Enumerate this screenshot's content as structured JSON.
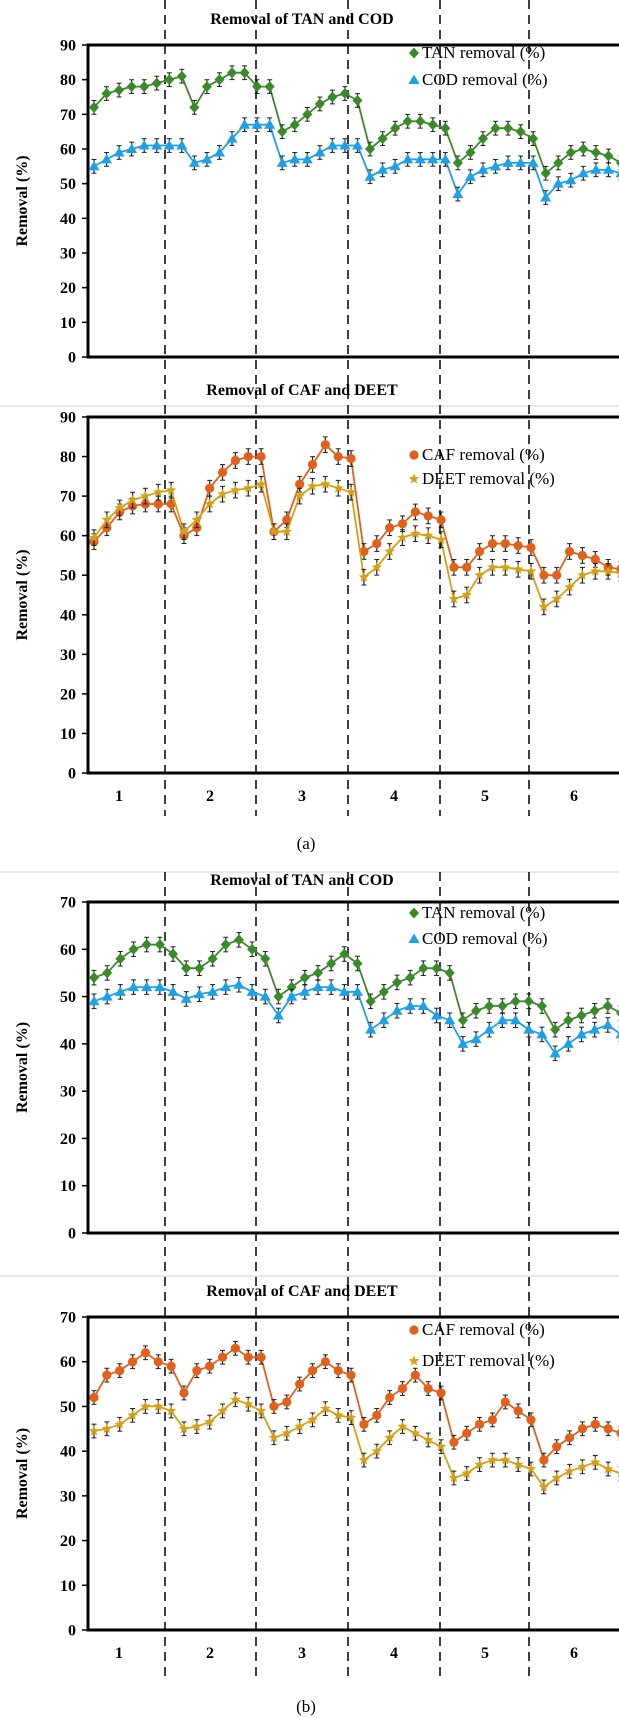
{
  "figure": {
    "caption_a": "(a)",
    "caption_b": "(b)"
  },
  "chart_data": [
    {
      "type": "line",
      "title": "Removal of TAN and COD",
      "xlabel": "",
      "ylabel": "Removal (%)",
      "ylim": [
        0,
        90
      ],
      "yticks": [
        0,
        10,
        20,
        30,
        40,
        50,
        60,
        70,
        80,
        90
      ],
      "grid": false,
      "legend": "top-right",
      "phase_labels": [],
      "series": [
        {
          "name": "TAN removal (%)",
          "marker": "diamond",
          "color": "#3a8a2a",
          "values": [
            72,
            76,
            77,
            78,
            78,
            79,
            80,
            81,
            72,
            78,
            80,
            82,
            82,
            78,
            78,
            65,
            67,
            70,
            73,
            75,
            76,
            74,
            60,
            63,
            66,
            68,
            68,
            67,
            66,
            56,
            59,
            63,
            66,
            66,
            65,
            63,
            53,
            56,
            59,
            60,
            59,
            58,
            56
          ]
        },
        {
          "name": "COD removal (%)",
          "marker": "triangle",
          "color": "#1ea0e6",
          "values": [
            55,
            57,
            59,
            60,
            61,
            61,
            61,
            61,
            56,
            57,
            59,
            63,
            67,
            67,
            67,
            56,
            57,
            57,
            59,
            61,
            61,
            61,
            52,
            54,
            55,
            57,
            57,
            57,
            57,
            47,
            52,
            54,
            55,
            56,
            56,
            56,
            46,
            50,
            51,
            53,
            54,
            54,
            53
          ]
        }
      ]
    },
    {
      "type": "line",
      "title": "Removal of CAF and DEET",
      "xlabel": "",
      "ylabel": "Removal (%)",
      "ylim": [
        0,
        90
      ],
      "yticks": [
        0,
        10,
        20,
        30,
        40,
        50,
        60,
        70,
        80,
        90
      ],
      "grid": false,
      "legend": "top-right",
      "phase_labels": [
        "1",
        "2",
        "3",
        "4",
        "5",
        "6"
      ],
      "series": [
        {
          "name": "CAF removal (%)",
          "marker": "circle",
          "color": "#e0601c",
          "values": [
            58.5,
            62,
            66,
            67.5,
            68,
            68,
            68,
            60,
            62,
            72,
            76,
            79,
            80,
            80,
            61,
            64,
            73,
            78,
            83,
            80,
            79.5,
            56,
            58,
            62,
            63,
            66,
            65,
            64,
            52,
            52,
            56,
            58,
            58,
            57.5,
            57,
            50,
            50,
            56,
            55,
            54,
            52,
            51.5
          ]
        },
        {
          "name": "DEET removal (%)",
          "marker": "star",
          "color": "#d4a017",
          "values": [
            59.5,
            64,
            67,
            69,
            70,
            71,
            71.5,
            61,
            64,
            68,
            70.5,
            71.5,
            72,
            73,
            61,
            61,
            70,
            72.5,
            73,
            72,
            71,
            49.5,
            52,
            56,
            59.5,
            60.5,
            60,
            59,
            44,
            45,
            50,
            52,
            52,
            51.5,
            51,
            42,
            44,
            47,
            50,
            51,
            51,
            50.5
          ]
        }
      ]
    },
    {
      "type": "line",
      "title": "Removal of TAN and COD",
      "xlabel": "",
      "ylabel": "Removal (%)",
      "ylim": [
        0,
        70
      ],
      "yticks": [
        0,
        10,
        20,
        30,
        40,
        50,
        60,
        70
      ],
      "grid": false,
      "legend": "top-right",
      "phase_labels": [],
      "series": [
        {
          "name": "TAN removal (%)",
          "marker": "diamond",
          "color": "#3a8a2a",
          "values": [
            54,
            55,
            58,
            60,
            61,
            61,
            59,
            56,
            56,
            58,
            61,
            62,
            60,
            58,
            50,
            52,
            54,
            55,
            57,
            59,
            57,
            49,
            51,
            53,
            54,
            56,
            56,
            55,
            45,
            47,
            48,
            48,
            49,
            49,
            48,
            43,
            45,
            46,
            47,
            48,
            46.5
          ]
        },
        {
          "name": "COD removal (%)",
          "marker": "triangle",
          "color": "#1ea0e6",
          "values": [
            49,
            50,
            51,
            52,
            52,
            52,
            51,
            49.5,
            50.5,
            51,
            52,
            52.5,
            51,
            50,
            46,
            50,
            51,
            52,
            52,
            51,
            51,
            43,
            45,
            47,
            48,
            48,
            46,
            45,
            40,
            41,
            43,
            45,
            45,
            43,
            42,
            38,
            40,
            42,
            43,
            44,
            42
          ]
        }
      ]
    },
    {
      "type": "line",
      "title": "Removal of CAF and DEET",
      "xlabel": "",
      "ylabel": "Removal (%)",
      "ylim": [
        0,
        70
      ],
      "yticks": [
        0,
        10,
        20,
        30,
        40,
        50,
        60,
        70
      ],
      "grid": false,
      "legend": "top-right",
      "phase_labels": [
        "1",
        "2",
        "3",
        "4",
        "5",
        "6"
      ],
      "series": [
        {
          "name": "CAF removal (%)",
          "marker": "circle",
          "color": "#e0601c",
          "values": [
            52,
            57,
            58,
            60,
            62,
            60,
            59,
            53,
            58,
            59,
            61,
            63,
            61,
            61,
            50,
            51,
            55,
            58,
            60,
            58,
            57,
            46,
            48,
            52,
            54,
            57,
            54,
            53,
            42,
            44,
            46,
            47,
            51,
            49,
            47,
            38,
            41,
            43,
            45,
            46,
            45,
            44
          ]
        },
        {
          "name": "DEET removal (%)",
          "marker": "star",
          "color": "#d4a017",
          "values": [
            44.5,
            45,
            46,
            48,
            50,
            50,
            49,
            45,
            45.5,
            46.5,
            49,
            51.5,
            50.5,
            49,
            43,
            44,
            45.5,
            47,
            49.5,
            48,
            47.5,
            38,
            40,
            43,
            45.5,
            44,
            42.5,
            41,
            34,
            35,
            37,
            38,
            38,
            37,
            36,
            32,
            34,
            35.5,
            36.5,
            37.5,
            36,
            35
          ]
        }
      ]
    }
  ]
}
